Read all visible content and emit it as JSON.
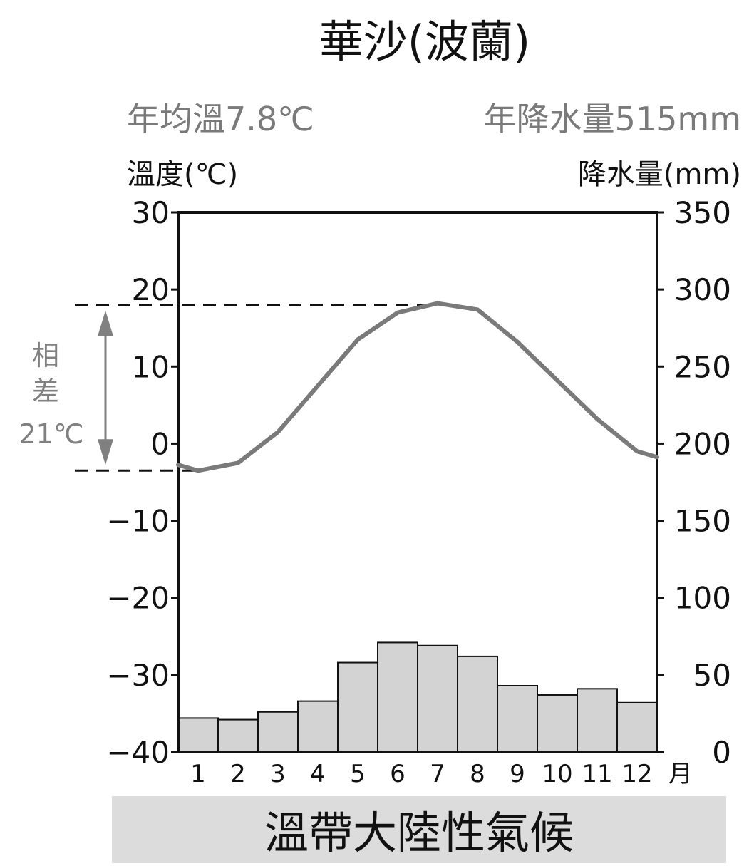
{
  "chart_data": {
    "type": "bar+line",
    "title": "華沙(波蘭)",
    "annual_mean_temp_label": "年均溫7.8℃",
    "annual_precip_label": "年降水量515mm",
    "left_axis_label": "溫度(℃)",
    "right_axis_label": "降水量(mm)",
    "x_unit_label": "月",
    "categories": [
      "1",
      "2",
      "3",
      "4",
      "5",
      "6",
      "7",
      "8",
      "9",
      "10",
      "11",
      "12"
    ],
    "temperature": {
      "name": "溫度",
      "color": "#7a7a7a",
      "values": [
        -3.5,
        -2.5,
        1.5,
        7.5,
        13.5,
        17,
        18.2,
        17.4,
        13.2,
        8.2,
        3.2,
        -1
      ]
    },
    "precipitation": {
      "name": "降水量",
      "color": "#d3d3d3",
      "values": [
        22,
        21,
        26,
        33,
        58,
        71,
        69,
        62,
        43,
        37,
        41,
        32
      ]
    },
    "left_axis": {
      "min": -40,
      "max": 30,
      "ticks": [
        30,
        20,
        10,
        0,
        -10,
        -20,
        -30,
        -40
      ]
    },
    "right_axis": {
      "min": 0,
      "max": 350,
      "ticks": [
        350,
        300,
        250,
        200,
        150,
        100,
        50,
        0
      ]
    },
    "range_annotation": {
      "label_1": "相",
      "label_2": "差",
      "value_label": "21℃",
      "max": 18,
      "min": -3.5
    },
    "footer": "溫帶大陸性氣候",
    "grid": false
  }
}
